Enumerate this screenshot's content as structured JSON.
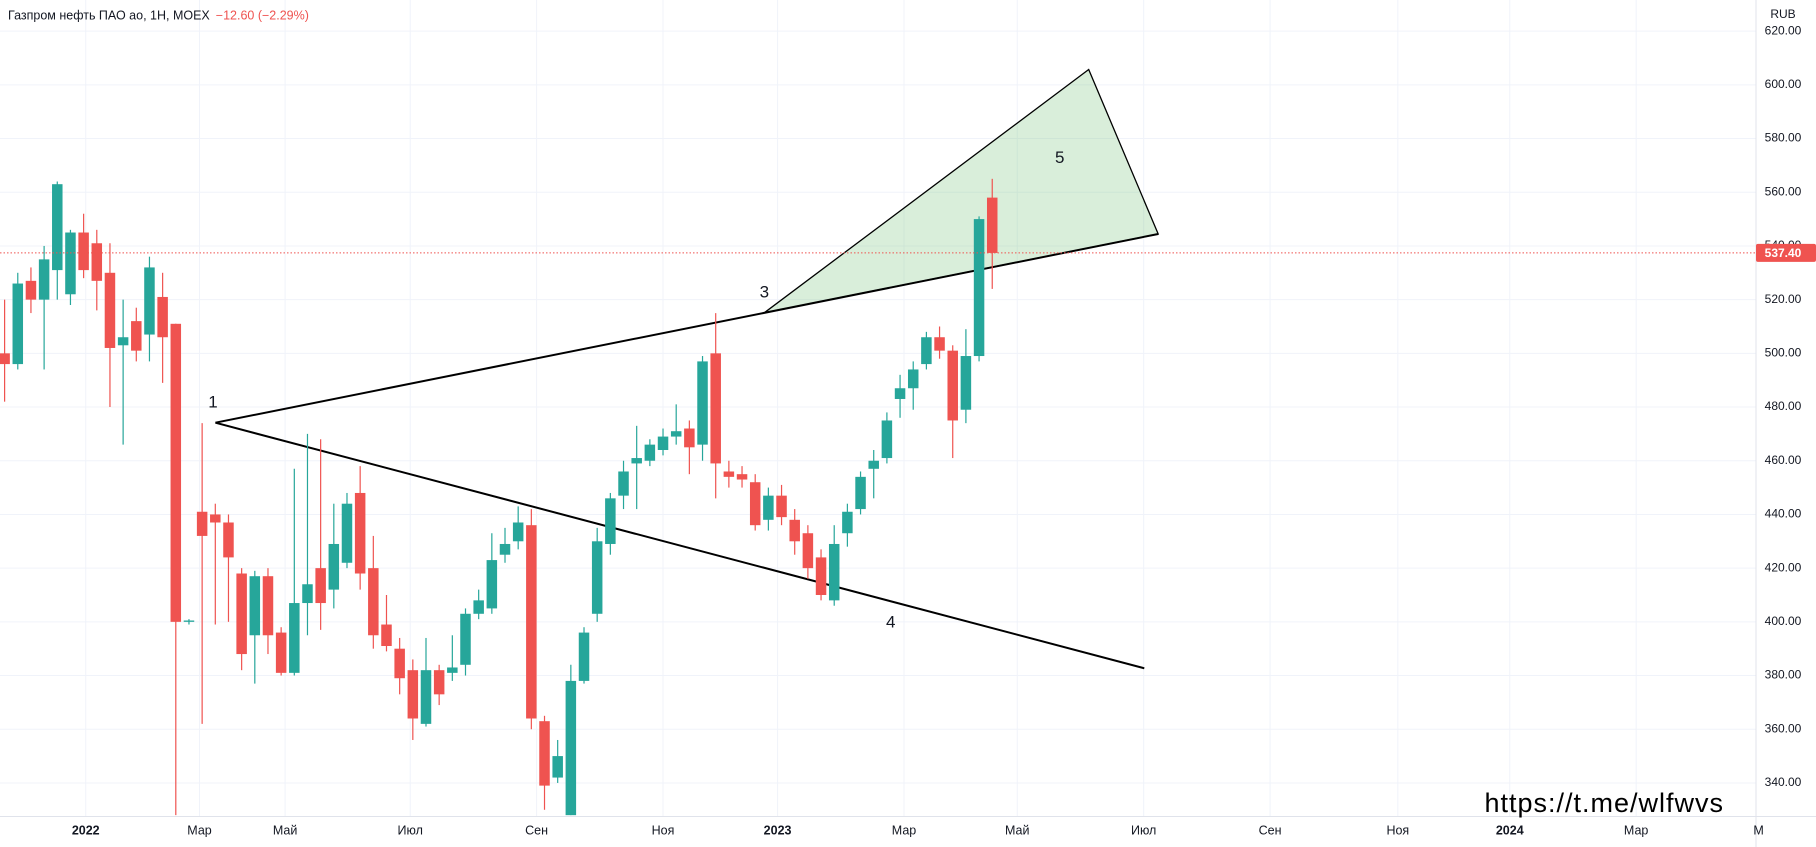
{
  "chart_data": {
    "type": "candlestick",
    "title": "Газпром нефть ПАО ао, 1Н, MOEX",
    "change": "−12.60 (−2.29%)",
    "currency": "RUB",
    "watermark": "https://t.me/wlfwvs",
    "up_color": "#26a69a",
    "down_color": "#ef5350",
    "grid": true,
    "x": [
      0,
      1,
      2,
      3,
      4,
      5,
      6,
      7,
      8,
      9,
      10,
      11,
      12,
      13,
      14,
      15,
      16,
      17,
      18,
      19,
      20,
      21,
      22,
      23,
      24,
      25,
      26,
      27,
      28,
      29,
      30,
      31,
      32,
      33,
      34,
      35,
      36,
      37,
      38,
      39,
      40,
      41,
      42,
      43,
      44,
      45,
      46,
      47,
      48,
      49,
      50,
      51,
      52,
      53,
      54,
      55,
      56,
      57,
      58,
      59,
      60,
      61,
      62,
      63,
      64,
      65,
      66,
      67,
      68,
      69,
      70,
      71,
      72,
      73,
      74,
      75
    ],
    "open": [
      500,
      496,
      527,
      520,
      531,
      522,
      545,
      541,
      530,
      503,
      512,
      507,
      521,
      511,
      400,
      441,
      440,
      437,
      418,
      395,
      417,
      396,
      381,
      407,
      420,
      412,
      422,
      448,
      420,
      399,
      390,
      382,
      362,
      382,
      381,
      384,
      403,
      405,
      425,
      430,
      436,
      363,
      342,
      328,
      378,
      403,
      429,
      447,
      459,
      460,
      464,
      469,
      472,
      466,
      500,
      456,
      455,
      452,
      438,
      447,
      438,
      433,
      424,
      408,
      433,
      442,
      457,
      461,
      483,
      487,
      496,
      506,
      501,
      479,
      499,
      558
    ],
    "high": [
      520,
      530,
      532,
      540,
      564,
      546,
      552,
      546,
      541,
      520,
      517,
      536,
      530,
      511,
      401,
      474,
      444,
      440,
      420,
      419,
      420,
      398,
      457,
      470,
      468,
      444,
      448,
      458,
      432,
      410,
      394,
      386,
      394,
      384,
      395,
      405,
      412,
      433,
      435,
      443,
      442,
      365,
      356,
      384,
      398,
      435,
      448,
      460,
      473,
      468,
      472,
      481,
      475,
      499,
      515,
      460,
      458,
      455,
      450,
      451,
      442,
      436,
      427,
      436,
      444,
      456,
      464,
      478,
      492,
      497,
      508,
      510,
      503,
      509,
      551,
      565
    ],
    "low": [
      482,
      494,
      515,
      494,
      520,
      518,
      528,
      516,
      480,
      466,
      497,
      497,
      489,
      328,
      399,
      362,
      399,
      400,
      382,
      377,
      388,
      380,
      380,
      395,
      397,
      405,
      420,
      412,
      390,
      389,
      373,
      356,
      361,
      369,
      378,
      380,
      401,
      403,
      422,
      427,
      360,
      330,
      340,
      328,
      377,
      400,
      425,
      442,
      442,
      458,
      462,
      466,
      455,
      460,
      446,
      450,
      450,
      434,
      434,
      436,
      425,
      416,
      408,
      406,
      428,
      440,
      446,
      459,
      476,
      479,
      494,
      498,
      461,
      474,
      497,
      524
    ],
    "close": [
      496,
      526,
      520,
      535,
      563,
      545,
      531,
      527,
      502,
      506,
      501,
      532,
      506,
      400,
      400.5,
      432,
      437,
      424,
      388,
      417,
      395,
      381,
      407,
      414,
      407,
      429,
      444,
      418,
      395,
      391,
      379,
      364,
      382,
      373,
      383,
      403,
      408,
      423,
      429,
      437,
      364,
      339,
      350,
      378,
      396,
      430,
      446,
      456,
      461,
      466,
      469,
      471,
      465,
      497,
      459,
      454,
      453,
      436,
      447,
      439,
      430,
      420,
      410,
      429,
      441,
      454,
      460,
      475,
      487,
      494,
      506,
      501,
      475,
      499,
      550,
      537.4
    ],
    "last_price": {
      "value": 537.4,
      "label": "537.40"
    },
    "xlim": [
      -0.35,
      133
    ],
    "xticks": [
      {
        "value": 6.16,
        "label": "2022"
      },
      {
        "value": 14.8,
        "label": "Мар"
      },
      {
        "value": 21.3,
        "label": "Май"
      },
      {
        "value": 30.8,
        "label": "Июл"
      },
      {
        "value": 40.4,
        "label": "Сен"
      },
      {
        "value": 50.0,
        "label": "Ноя"
      },
      {
        "value": 58.7,
        "label": "2023"
      },
      {
        "value": 68.3,
        "label": "Мар"
      },
      {
        "value": 76.9,
        "label": "Май"
      },
      {
        "value": 86.5,
        "label": "Июл"
      },
      {
        "value": 96.1,
        "label": "Сен"
      },
      {
        "value": 105.8,
        "label": "Ноя"
      },
      {
        "value": 114.3,
        "label": "2024"
      },
      {
        "value": 123.9,
        "label": "Мар"
      },
      {
        "value": 133.2,
        "label": "М"
      }
    ],
    "ylim": [
      327.5,
      631.6
    ],
    "yticks": [
      {
        "value": 340,
        "label": "340.00"
      },
      {
        "value": 360,
        "label": "360.00"
      },
      {
        "value": 380,
        "label": "380.00"
      },
      {
        "value": 400,
        "label": "400.00"
      },
      {
        "value": 420,
        "label": "420.00"
      },
      {
        "value": 440,
        "label": "440.00"
      },
      {
        "value": 460,
        "label": "460.00"
      },
      {
        "value": 480,
        "label": "480.00"
      },
      {
        "value": 500,
        "label": "500.00"
      },
      {
        "value": 520,
        "label": "520.00"
      },
      {
        "value": 540,
        "label": "540.00"
      },
      {
        "value": 560,
        "label": "560.00"
      },
      {
        "value": 580,
        "label": "580.00"
      },
      {
        "value": 600,
        "label": "600.00"
      },
      {
        "value": 620,
        "label": "620.00"
      }
    ],
    "annotations": [
      "1",
      "3",
      "4",
      "5"
    ]
  }
}
